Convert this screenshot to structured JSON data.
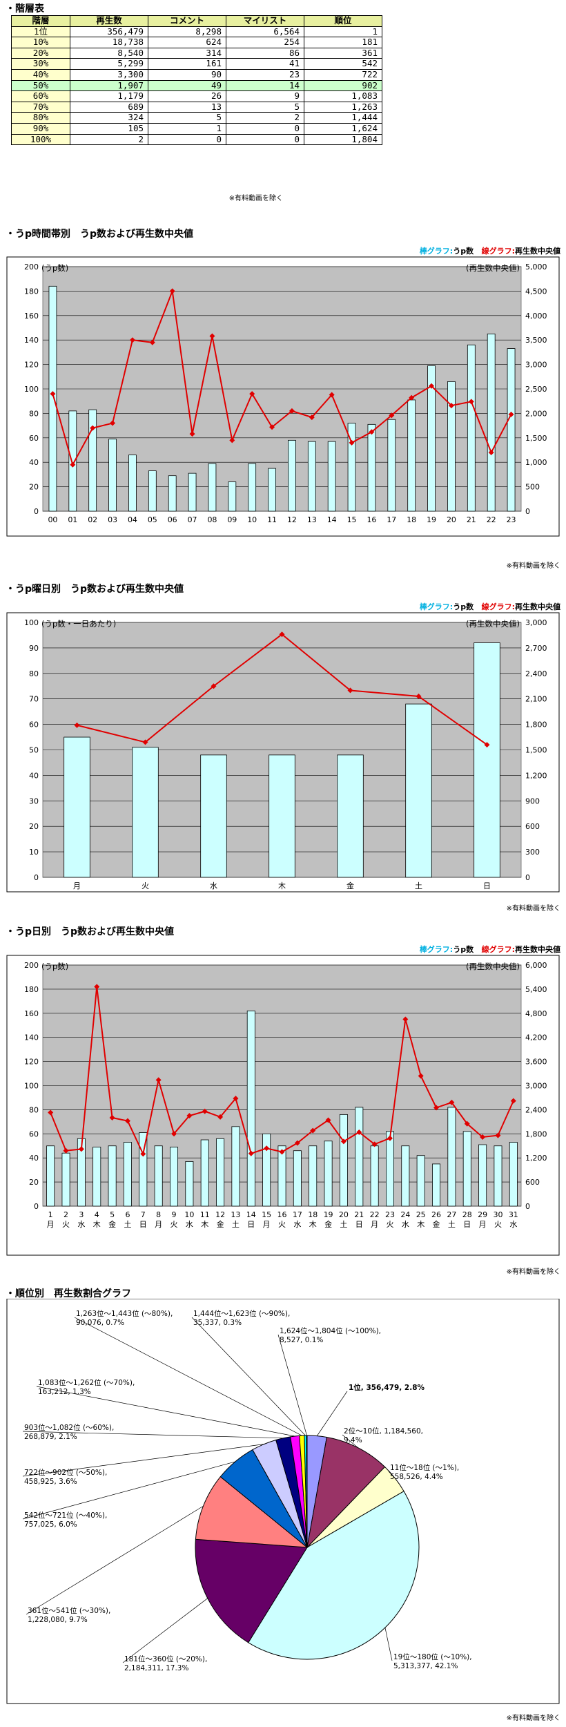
{
  "tier_table": {
    "title": "・階層表",
    "headers": [
      "階層",
      "再生数",
      "コメント",
      "マイリスト",
      "順位"
    ],
    "rows": [
      [
        "1位",
        "356,479",
        "8,298",
        "6,564",
        "1"
      ],
      [
        "10%",
        "18,738",
        "624",
        "254",
        "181"
      ],
      [
        "20%",
        "8,540",
        "314",
        "86",
        "361"
      ],
      [
        "30%",
        "5,299",
        "161",
        "41",
        "542"
      ],
      [
        "40%",
        "3,300",
        "90",
        "23",
        "722"
      ],
      [
        "50%",
        "1,907",
        "49",
        "14",
        "902"
      ],
      [
        "60%",
        "1,179",
        "26",
        "9",
        "1,083"
      ],
      [
        "70%",
        "689",
        "13",
        "5",
        "1,263"
      ],
      [
        "80%",
        "324",
        "5",
        "2",
        "1,444"
      ],
      [
        "90%",
        "105",
        "1",
        "0",
        "1,624"
      ],
      [
        "100%",
        "2",
        "0",
        "0",
        "1,804"
      ]
    ],
    "highlight_row": 5,
    "note": "※有料動画を除く"
  },
  "legend": {
    "bar_prefix": "棒グラフ:",
    "bar_label": "うp数",
    "line_prefix": "線グラフ:",
    "line_label": "再生数中央値"
  },
  "colors": {
    "bar_fill": "#ccffff",
    "line": "#e00000",
    "plot_bg": "#c0c0c0",
    "hl_row": "#ccffcc",
    "header": "#e8f0a0",
    "level_cell": "#ffffcc"
  },
  "chart_data": [
    {
      "type": "bar",
      "title": "・うp時間帯別　うp数および再生数中央値",
      "ylabel": "(うp数)",
      "y2label": "(再生数中央値)",
      "note": "※有料動画を除く",
      "categories": [
        "00",
        "01",
        "02",
        "03",
        "04",
        "05",
        "06",
        "07",
        "08",
        "09",
        "10",
        "11",
        "12",
        "13",
        "14",
        "15",
        "16",
        "17",
        "18",
        "19",
        "20",
        "21",
        "22",
        "23"
      ],
      "ylim": [
        0,
        200
      ],
      "yticks": [
        0,
        20,
        40,
        60,
        80,
        100,
        120,
        140,
        160,
        180,
        200
      ],
      "y2lim": [
        0,
        5000
      ],
      "y2ticks": [
        0,
        500,
        1000,
        1500,
        2000,
        2500,
        3000,
        3500,
        4000,
        4500,
        5000
      ],
      "series": [
        {
          "values": [
            184,
            82,
            83,
            59,
            46,
            33,
            29,
            31,
            39,
            24,
            39,
            35,
            58,
            57,
            57,
            72,
            71,
            75,
            91,
            119,
            106,
            136,
            145,
            133
          ]
        },
        {
          "values": [
            2400,
            950,
            1700,
            1800,
            3500,
            3450,
            4500,
            1580,
            3580,
            1450,
            2400,
            1720,
            2050,
            1920,
            2380,
            1400,
            1620,
            1960,
            2320,
            2560,
            2160,
            2240,
            1200,
            1980
          ]
        }
      ]
    },
    {
      "type": "bar",
      "title": "・うp曜日別　うp数および再生数中央値",
      "ylabel": "(うp数・一日あたり)",
      "y2label": "(再生数中央値)",
      "note": "※有料動画を除く",
      "categories": [
        "月",
        "火",
        "水",
        "木",
        "金",
        "土",
        "日"
      ],
      "ylim": [
        0,
        100
      ],
      "yticks": [
        0,
        10,
        20,
        30,
        40,
        50,
        60,
        70,
        80,
        90,
        100
      ],
      "y2lim": [
        0,
        3000
      ],
      "y2ticks": [
        0,
        300,
        600,
        900,
        1200,
        1500,
        1800,
        2100,
        2400,
        2700,
        3000
      ],
      "series": [
        {
          "values": [
            55,
            51,
            48,
            48,
            48,
            68,
            92
          ]
        },
        {
          "values": [
            1790,
            1590,
            2250,
            2860,
            2200,
            2130,
            1560
          ]
        }
      ]
    },
    {
      "type": "bar",
      "title": "・うp日別　うp数および再生数中央値",
      "ylabel": "(うp数)",
      "y2label": "(再生数中央値)",
      "note": "※有料動画を除く",
      "categories": [
        "1",
        "2",
        "3",
        "4",
        "5",
        "6",
        "7",
        "8",
        "9",
        "10",
        "11",
        "12",
        "13",
        "14",
        "15",
        "16",
        "17",
        "18",
        "19",
        "20",
        "21",
        "22",
        "23",
        "24",
        "25",
        "26",
        "27",
        "28",
        "29",
        "30",
        "31"
      ],
      "weekdays": [
        "月",
        "火",
        "水",
        "木",
        "金",
        "土",
        "日",
        "月",
        "火",
        "水",
        "木",
        "金",
        "土",
        "日",
        "月",
        "火",
        "水",
        "木",
        "金",
        "土",
        "日",
        "月",
        "火",
        "水",
        "木",
        "金",
        "土",
        "日",
        "月",
        "火",
        "水"
      ],
      "ylim": [
        0,
        200
      ],
      "yticks": [
        0,
        20,
        40,
        60,
        80,
        100,
        120,
        140,
        160,
        180,
        200
      ],
      "y2lim": [
        0,
        6000
      ],
      "y2ticks": [
        0,
        600,
        1200,
        1800,
        2400,
        3000,
        3600,
        4200,
        4800,
        5400,
        6000
      ],
      "series": [
        {
          "values": [
            50,
            44,
            56,
            49,
            50,
            53,
            61,
            50,
            49,
            37,
            55,
            56,
            66,
            162,
            60,
            50,
            46,
            50,
            54,
            76,
            82,
            50,
            62,
            50,
            42,
            35,
            82,
            62,
            51,
            50,
            53
          ]
        },
        {
          "values": [
            2330,
            1380,
            1420,
            5460,
            2200,
            2120,
            1300,
            3140,
            1800,
            2250,
            2360,
            2220,
            2680,
            1310,
            1440,
            1350,
            1570,
            1880,
            2140,
            1610,
            1840,
            1540,
            1690,
            4650,
            3240,
            2450,
            2580,
            2050,
            1720,
            1760,
            2620
          ]
        }
      ]
    },
    {
      "type": "pie",
      "title": "・順位別　再生数割合グラフ",
      "note": "※有料動画を除く",
      "slices": [
        {
          "label": "1位, 356,479, 2.8%",
          "value": 2.8,
          "color": "#9999ff"
        },
        {
          "label": "2位～10位, 1,184,560, 9.4%",
          "value": 9.4,
          "color": "#993366"
        },
        {
          "label": "11位～18位 (～1%), 558,526, 4.4%",
          "value": 4.4,
          "color": "#ffffcc"
        },
        {
          "label": "19位～180位 (～10%), 5,313,377, 42.1%",
          "value": 42.1,
          "color": "#ccffff"
        },
        {
          "label": "181位～360位 (～20%), 2,184,311, 17.3%",
          "value": 17.3,
          "color": "#660066"
        },
        {
          "label": "361位～541位 (～30%), 1,228,080, 9.7%",
          "value": 9.7,
          "color": "#ff8080"
        },
        {
          "label": "542位～721位 (～40%), 757,025, 6.0%",
          "value": 6.0,
          "color": "#0066cc"
        },
        {
          "label": "722位～902位 (～50%), 458,925, 3.6%",
          "value": 3.6,
          "color": "#ccccff"
        },
        {
          "label": "903位～1,082位 (～60%), 268,879, 2.1%",
          "value": 2.1,
          "color": "#000080"
        },
        {
          "label": "1,083位～1,262位 (～70%), 163,212, 1.3%",
          "value": 1.3,
          "color": "#ff00ff"
        },
        {
          "label": "1,263位～1,443位 (～80%), 90,076, 0.7%",
          "value": 0.7,
          "color": "#ffff00"
        },
        {
          "label": "1,444位～1,623位 (～90%), 35,337, 0.3%",
          "value": 0.3,
          "color": "#00ffff"
        },
        {
          "label": "1,624位～1,804位 (～100%), 8,527, 0.1%",
          "value": 0.1,
          "color": "#800080"
        }
      ]
    }
  ]
}
